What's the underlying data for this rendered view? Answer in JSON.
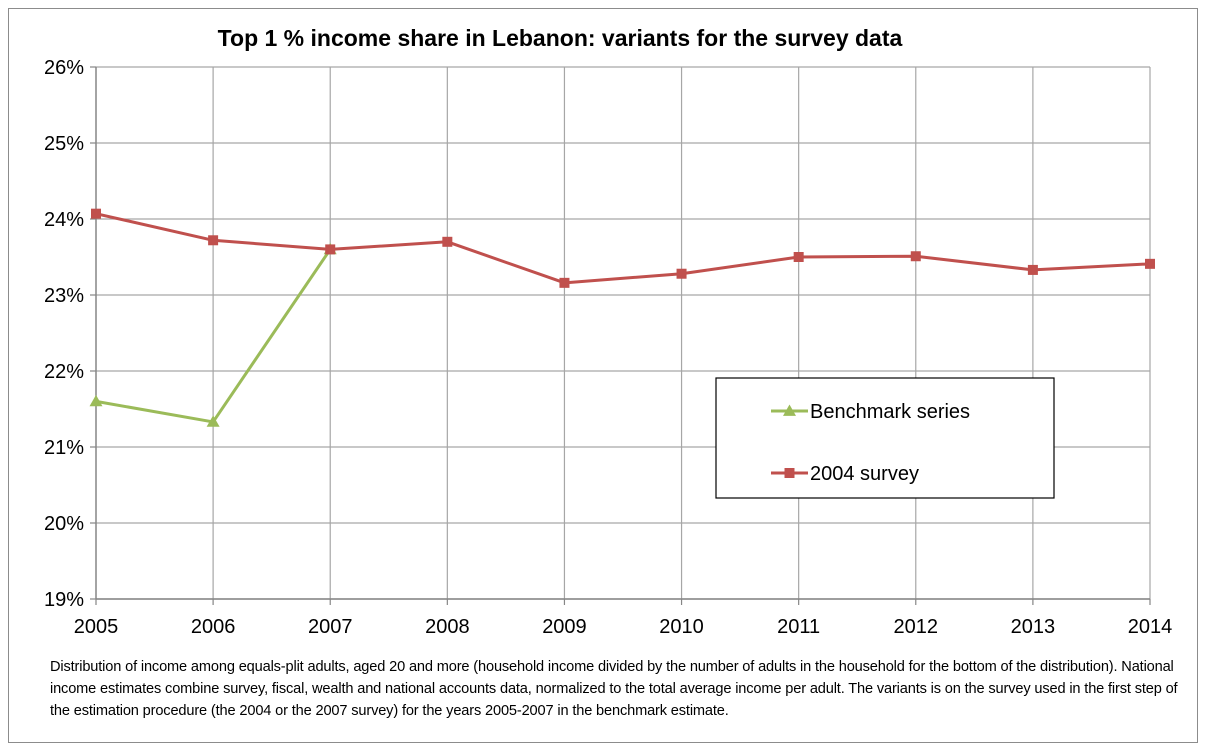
{
  "chart_data": {
    "type": "line",
    "title": "Top 1 % income share in Lebanon: variants for the survey data",
    "xlabel": "",
    "ylabel": "",
    "x": [
      "2005",
      "2006",
      "2007",
      "2008",
      "2009",
      "2010",
      "2011",
      "2012",
      "2013",
      "2014"
    ],
    "ylim": [
      19,
      26
    ],
    "yticks": [
      "19%",
      "20%",
      "21%",
      "22%",
      "23%",
      "24%",
      "25%",
      "26%"
    ],
    "grid": true,
    "legend_position": "center-right",
    "series": [
      {
        "name": "Benchmark series",
        "marker": "triangle",
        "color": "#9bbb59",
        "values": [
          21.6,
          21.33,
          23.6,
          null,
          null,
          null,
          null,
          null,
          null,
          null
        ]
      },
      {
        "name": "2004 survey",
        "marker": "square",
        "color": "#c0504d",
        "values": [
          24.07,
          23.72,
          23.6,
          23.7,
          23.16,
          23.28,
          23.5,
          23.51,
          23.33,
          23.41
        ]
      }
    ]
  },
  "note": "Distribution of income among equals-plit adults, aged 20 and more (household income divided by the number of adults in the household for the bottom of the distribution). National income estimates combine survey, fiscal, wealth and national accounts data, normalized to the total average income per adult. The variants is on the survey used in the first step of the estimation procedure (the 2004 or the 2007 survey) for the years 2005-2007 in the benchmark estimate."
}
